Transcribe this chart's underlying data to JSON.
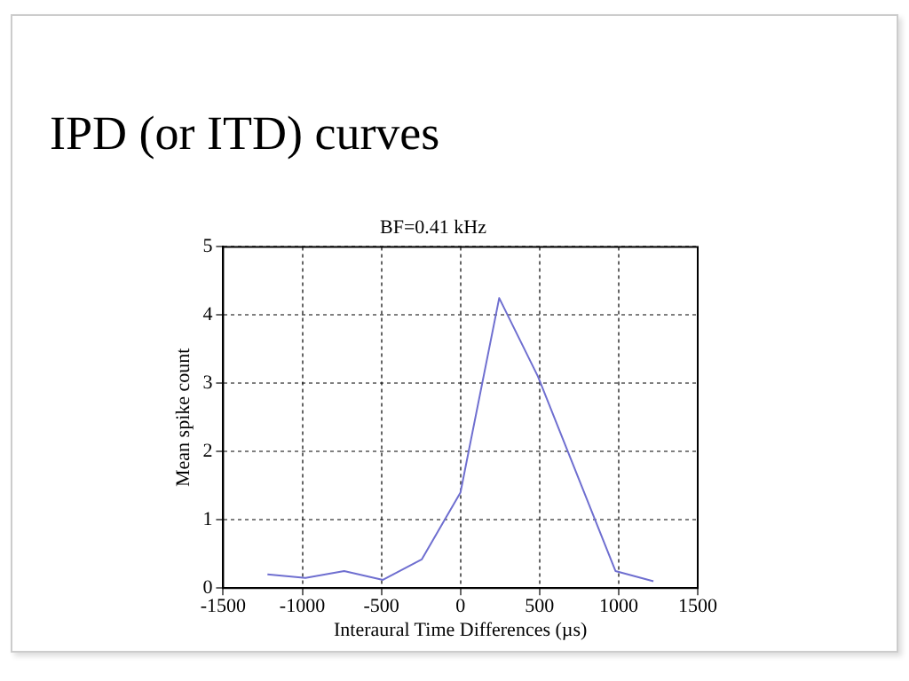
{
  "chart_data": {
    "type": "line",
    "title": "BF=0.41 kHz",
    "subtitle": "IPD (or ITD) curves",
    "xlabel": "Interaural Time Differences (µs)",
    "ylabel": "Mean spike count",
    "x": [
      -1220,
      -980,
      -735,
      -490,
      -245,
      0,
      245,
      490,
      980,
      1220
    ],
    "series": [
      {
        "color": "#6f6fd0",
        "values": [
          0.2,
          0.15,
          0.25,
          0.12,
          0.42,
          1.4,
          4.25,
          3.1,
          0.25,
          0.1
        ]
      }
    ],
    "xlim": [
      -1500,
      1500
    ],
    "xticks": [
      -1500,
      -1000,
      -500,
      0,
      500,
      1000,
      1500
    ],
    "ylim": [
      0,
      5
    ],
    "yticks": [
      0,
      1,
      2,
      3,
      4,
      5
    ],
    "grid": true,
    "marker": "none",
    "line_style": "solid"
  }
}
